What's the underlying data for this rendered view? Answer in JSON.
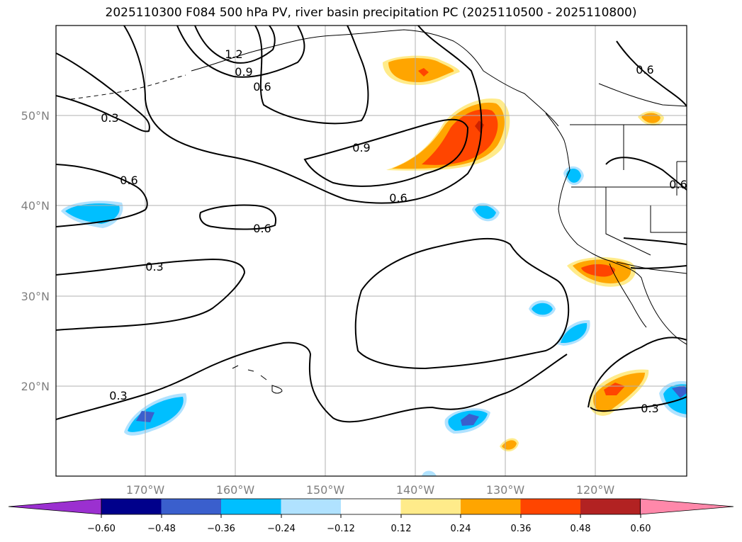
{
  "title": "2025110300 F084 500 hPa PV, river basin precipitation PC (2025110500 - 2025110800)",
  "lat_labels": [
    "50°N",
    "40°N",
    "30°N",
    "20°N"
  ],
  "lon_labels": [
    "170°W",
    "160°W",
    "150°W",
    "140°W",
    "130°W",
    "120°W"
  ],
  "contour_labels": [
    "1.2",
    "0.9",
    "0.6",
    "0.3",
    "0.6",
    "0.9",
    "0.6",
    "0.6",
    "0.3",
    "0.3",
    "0.3",
    "0.6",
    "0.6"
  ],
  "colorbar": {
    "tick_labels": [
      "−0.60",
      "−0.48",
      "−0.36",
      "−0.24",
      "−0.12",
      "0.12",
      "0.24",
      "0.36",
      "0.48",
      "0.60"
    ],
    "colors": [
      "#9b30d0",
      "#00008b",
      "#3a5fcd",
      "#00bfff",
      "#b0e2ff",
      "#ffffff",
      "#ffeb8a",
      "#ffa500",
      "#ff4500",
      "#b22222",
      "#ff88aa"
    ]
  },
  "colors": {
    "pos_light": "#ffeb8a",
    "pos_mid": "#ffa500",
    "pos_strong": "#ff4500",
    "pos_max": "#cc2200",
    "neg_light": "#b0e2ff",
    "neg_mid": "#00bfff",
    "neg_strong": "#3a5fcd"
  }
}
